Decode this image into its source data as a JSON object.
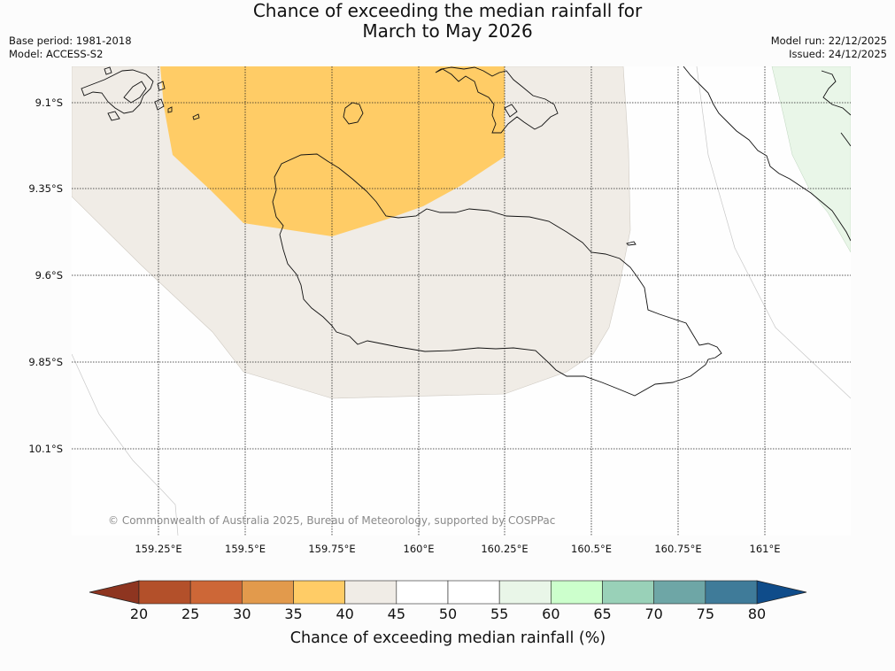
{
  "title": {
    "line1": "Chance of exceeding the median rainfall for",
    "line2": "March to May 2026"
  },
  "meta": {
    "base_period": "Base period: 1981-2018",
    "model": "Model: ACCESS-S2",
    "model_run": "Model run: 22/12/2025",
    "issued": "Issued: 24/12/2025"
  },
  "map": {
    "lat_labels": [
      "9.1°S",
      "9.35°S",
      "9.6°S",
      "9.85°S",
      "10.1°S"
    ],
    "lon_labels": [
      "159.25°E",
      "159.5°E",
      "159.75°E",
      "160°E",
      "160.25°E",
      "160.5°E",
      "160.75°E",
      "161°E"
    ],
    "copyright": "© Commonwealth of Australia 2025, Bureau of Meteorology, supported by COSPPac",
    "region_colors": {
      "orange_40": "#ffcc66",
      "neutral_45": "#f0ece6",
      "green_55": "#e9f6e8"
    }
  },
  "colorbar": {
    "title": "Chance of exceeding median rainfall (%)",
    "ticks": [
      "20",
      "25",
      "30",
      "35",
      "40",
      "45",
      "50",
      "55",
      "60",
      "65",
      "70",
      "75",
      "80"
    ],
    "under_color": "#8e3520",
    "over_color": "#0f4c8a",
    "bin_colors": [
      "#b3502a",
      "#cd6737",
      "#e29a4c",
      "#ffcc66",
      "#f0ece6",
      "#ffffff",
      "#ffffff",
      "#e9f6e8",
      "#ccffcc",
      "#99d1b8",
      "#6ea6a6",
      "#3f7b99"
    ]
  }
}
